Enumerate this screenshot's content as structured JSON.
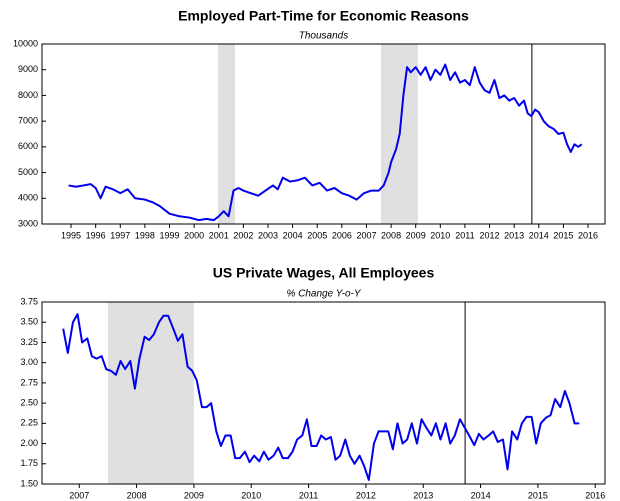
{
  "chart_data": [
    {
      "type": "line",
      "title": "Employed Part-Time for Economic Reasons",
      "subtitle": "Thousands",
      "color": "#0000ee",
      "x": [
        1994.9,
        1995.2,
        1995.5,
        1995.8,
        1996.0,
        1996.2,
        1996.4,
        1996.7,
        1997.0,
        1997.3,
        1997.6,
        1998.0,
        1998.3,
        1998.6,
        1999.0,
        1999.4,
        1999.8,
        2000.2,
        2000.5,
        2000.8,
        2001.0,
        2001.2,
        2001.4,
        2001.6,
        2001.8,
        2002.0,
        2002.3,
        2002.6,
        2002.9,
        2003.2,
        2003.4,
        2003.6,
        2003.9,
        2004.2,
        2004.5,
        2004.8,
        2005.1,
        2005.4,
        2005.7,
        2006.0,
        2006.3,
        2006.6,
        2006.9,
        2007.2,
        2007.5,
        2007.7,
        2007.9,
        2008.0,
        2008.2,
        2008.35,
        2008.5,
        2008.65,
        2008.8,
        2009.0,
        2009.2,
        2009.4,
        2009.6,
        2009.8,
        2010.0,
        2010.2,
        2010.4,
        2010.6,
        2010.8,
        2011.0,
        2011.2,
        2011.4,
        2011.6,
        2011.8,
        2012.0,
        2012.2,
        2012.4,
        2012.6,
        2012.8,
        2013.0,
        2013.2,
        2013.4,
        2013.55,
        2013.7,
        2013.85,
        2014.0,
        2014.2,
        2014.4,
        2014.6,
        2014.8,
        2015.0,
        2015.15,
        2015.3,
        2015.45,
        2015.6,
        2015.75
      ],
      "values": [
        4500,
        4450,
        4500,
        4550,
        4400,
        4000,
        4450,
        4350,
        4200,
        4350,
        4000,
        3950,
        3850,
        3700,
        3400,
        3300,
        3250,
        3150,
        3200,
        3150,
        3300,
        3500,
        3300,
        4300,
        4400,
        4300,
        4200,
        4100,
        4300,
        4500,
        4350,
        4800,
        4650,
        4700,
        4800,
        4500,
        4600,
        4300,
        4400,
        4200,
        4100,
        3950,
        4200,
        4300,
        4300,
        4500,
        5000,
        5400,
        5900,
        6500,
        8000,
        9100,
        8900,
        9100,
        8800,
        9100,
        8600,
        9000,
        8800,
        9200,
        8600,
        8900,
        8500,
        8600,
        8400,
        9100,
        8500,
        8200,
        8100,
        8600,
        7900,
        8000,
        7800,
        7900,
        7600,
        7800,
        7300,
        7200,
        7450,
        7350,
        7000,
        6800,
        6700,
        6500,
        6550,
        6100,
        5800,
        6100,
        6000,
        6100
      ],
      "xlim": [
        1993.82,
        2016.69
      ],
      "xticks": [
        1995,
        1996,
        1997,
        1998,
        1999,
        2000,
        2001,
        2002,
        2003,
        2004,
        2005,
        2006,
        2007,
        2008,
        2009,
        2010,
        2011,
        2012,
        2013,
        2014,
        2015,
        2016
      ],
      "ylim": [
        3000,
        10000
      ],
      "yticks": [
        3000,
        4000,
        5000,
        6000,
        7000,
        8000,
        9000,
        10000
      ],
      "shaded_ranges": [
        [
          2000.97,
          2001.66
        ],
        [
          2007.59,
          2009.09
        ]
      ],
      "vline": 2013.72
    },
    {
      "type": "line",
      "title": "US Private Wages, All Employees",
      "subtitle": "% Change Y-o-Y",
      "color": "#0000ee",
      "x": [
        2006.72,
        2006.8,
        2006.89,
        2006.97,
        2007.05,
        2007.14,
        2007.22,
        2007.3,
        2007.39,
        2007.47,
        2007.55,
        2007.64,
        2007.72,
        2007.8,
        2007.89,
        2007.97,
        2008.05,
        2008.14,
        2008.22,
        2008.3,
        2008.39,
        2008.47,
        2008.55,
        2008.64,
        2008.72,
        2008.8,
        2008.89,
        2008.97,
        2009.05,
        2009.14,
        2009.22,
        2009.3,
        2009.39,
        2009.47,
        2009.55,
        2009.64,
        2009.72,
        2009.8,
        2009.89,
        2009.97,
        2010.05,
        2010.14,
        2010.22,
        2010.3,
        2010.39,
        2010.47,
        2010.55,
        2010.64,
        2010.72,
        2010.8,
        2010.89,
        2010.97,
        2011.05,
        2011.14,
        2011.22,
        2011.3,
        2011.39,
        2011.47,
        2011.55,
        2011.64,
        2011.72,
        2011.8,
        2011.89,
        2011.97,
        2012.05,
        2012.14,
        2012.22,
        2012.3,
        2012.39,
        2012.47,
        2012.55,
        2012.64,
        2012.72,
        2012.8,
        2012.89,
        2012.97,
        2013.05,
        2013.14,
        2013.22,
        2013.3,
        2013.39,
        2013.47,
        2013.55,
        2013.64,
        2013.72,
        2013.8,
        2013.89,
        2013.97,
        2014.05,
        2014.14,
        2014.22,
        2014.3,
        2014.39,
        2014.47,
        2014.55,
        2014.64,
        2014.72,
        2014.8,
        2014.89,
        2014.97,
        2015.05,
        2015.14,
        2015.22,
        2015.3,
        2015.39,
        2015.47,
        2015.55,
        2015.64,
        2015.72
      ],
      "values": [
        3.42,
        3.12,
        3.5,
        3.6,
        3.25,
        3.3,
        3.08,
        3.05,
        3.08,
        2.92,
        2.9,
        2.85,
        3.02,
        2.92,
        3.02,
        2.68,
        3.05,
        3.32,
        3.28,
        3.35,
        3.5,
        3.58,
        3.58,
        3.42,
        3.27,
        3.35,
        2.95,
        2.9,
        2.78,
        2.45,
        2.45,
        2.5,
        2.15,
        1.97,
        2.1,
        2.1,
        1.82,
        1.82,
        1.9,
        1.77,
        1.85,
        1.78,
        1.9,
        1.8,
        1.85,
        1.95,
        1.82,
        1.82,
        1.9,
        2.05,
        2.1,
        2.3,
        1.97,
        1.97,
        2.1,
        2.05,
        2.08,
        1.8,
        1.85,
        2.05,
        1.85,
        1.75,
        1.85,
        1.72,
        1.55,
        2.0,
        2.15,
        2.15,
        2.15,
        1.93,
        2.25,
        2.0,
        2.05,
        2.25,
        2.0,
        2.3,
        2.2,
        2.1,
        2.25,
        2.05,
        2.25,
        2.0,
        2.1,
        2.3,
        2.2,
        2.1,
        1.98,
        2.12,
        2.05,
        2.1,
        2.15,
        2.02,
        2.05,
        1.68,
        2.15,
        2.05,
        2.25,
        2.33,
        2.33,
        2.0,
        2.25,
        2.32,
        2.35,
        2.55,
        2.45,
        2.65,
        2.5,
        2.25,
        2.25
      ],
      "xlim": [
        2006.35,
        2016.17
      ],
      "xticks": [
        2007,
        2008,
        2009,
        2010,
        2011,
        2012,
        2013,
        2014,
        2015,
        2016
      ],
      "ylim": [
        1.5,
        3.75
      ],
      "yticks": [
        {
          "value": 1.5,
          "label": "1.50"
        },
        1.75,
        {
          "value": 2,
          "label": "2.00"
        },
        2.25,
        {
          "value": 2.5,
          "label": "2.50"
        },
        2.75,
        {
          "value": 3,
          "label": "3.00"
        },
        3.25,
        {
          "value": 3.5,
          "label": "3.50"
        },
        3.75
      ],
      "shaded_ranges": [
        [
          2007.5,
          2009.0
        ]
      ],
      "vline": 2013.73
    }
  ]
}
